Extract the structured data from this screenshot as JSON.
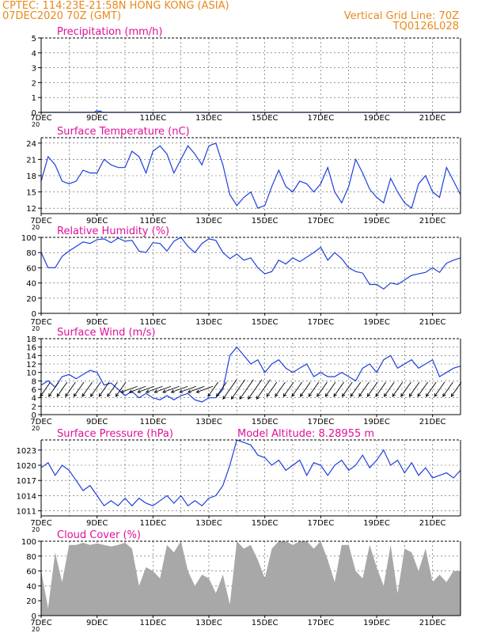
{
  "header": {
    "left_line1": "CPTEC:   114:23E-21:58N   HONG KONG (ASIA)",
    "left_line2": "07DEC2020 70Z (GMT)",
    "right_line1": "Vertical Grid Line: 70Z",
    "right_line2": "TQ0126L028"
  },
  "x_tick_labels": [
    "7DEC",
    "9DEC",
    "11DEC",
    "13DEC",
    "15DEC",
    "17DEC",
    "19DEC",
    "21DEC"
  ],
  "x_stub": "20",
  "colors": {
    "header": "#e8891b",
    "title": "#e0109a",
    "line": "#1f3fdc",
    "cloud_fill": "#a8a8a8"
  },
  "chart_data": [
    {
      "type": "line",
      "title": "Precipitation (mm/h)",
      "x_days": [
        7,
        7.5,
        8,
        8.5,
        8.9,
        9,
        9.05,
        9.1,
        9.2,
        9.5,
        10,
        11,
        12,
        13,
        14,
        15,
        16,
        17,
        18,
        19,
        20,
        21,
        22
      ],
      "values": [
        0,
        0,
        0,
        0,
        0,
        0.12,
        0.05,
        0.1,
        0,
        0,
        0,
        0,
        0,
        0,
        0,
        0,
        0,
        0,
        0,
        0,
        0,
        0,
        0
      ],
      "ylim": [
        0,
        5
      ],
      "yticks": [
        0,
        1,
        2,
        3,
        4,
        5
      ]
    },
    {
      "type": "line",
      "title": "Surface Temperature (nC)",
      "x_days": [
        7,
        7.25,
        7.5,
        7.75,
        8,
        8.25,
        8.5,
        8.75,
        9,
        9.25,
        9.5,
        9.75,
        10,
        10.25,
        10.5,
        10.75,
        11,
        11.25,
        11.5,
        11.75,
        12,
        12.25,
        12.5,
        12.75,
        13,
        13.25,
        13.5,
        13.75,
        14,
        14.25,
        14.5,
        14.75,
        15,
        15.25,
        15.5,
        15.75,
        16,
        16.25,
        16.5,
        16.75,
        17,
        17.25,
        17.5,
        17.75,
        18,
        18.25,
        18.5,
        18.75,
        19,
        19.25,
        19.5,
        19.75,
        20,
        20.25,
        20.5,
        20.75,
        21,
        21.25,
        21.5,
        21.75,
        22
      ],
      "values": [
        17,
        21.5,
        20,
        17,
        16.5,
        17,
        19,
        18.5,
        18.5,
        21,
        20,
        19.5,
        19.5,
        22.5,
        21.5,
        18.5,
        22.5,
        23.5,
        22,
        18.5,
        21,
        23.5,
        22,
        20,
        23.5,
        24,
        20,
        14.5,
        12.5,
        14,
        15,
        12,
        12.5,
        16,
        19,
        16,
        15,
        17,
        16.5,
        15,
        16.5,
        19.5,
        15,
        13,
        16,
        21,
        18.5,
        15.5,
        14,
        13,
        17.5,
        15,
        13,
        12,
        16.5,
        18,
        15,
        14,
        19.5,
        17,
        14.5
      ],
      "ylim": [
        11,
        25
      ],
      "yticks": [
        12,
        15,
        18,
        21,
        24
      ]
    },
    {
      "type": "line",
      "title": "Relative Humidity (%)",
      "x_days": [
        7,
        7.25,
        7.5,
        7.75,
        8,
        8.25,
        8.5,
        8.75,
        9,
        9.25,
        9.5,
        9.75,
        10,
        10.25,
        10.5,
        10.75,
        11,
        11.25,
        11.5,
        11.75,
        12,
        12.25,
        12.5,
        12.75,
        13,
        13.25,
        13.5,
        13.75,
        14,
        14.25,
        14.5,
        14.75,
        15,
        15.25,
        15.5,
        15.75,
        16,
        16.25,
        16.5,
        16.75,
        17,
        17.25,
        17.5,
        17.75,
        18,
        18.25,
        18.5,
        18.75,
        19,
        19.25,
        19.5,
        19.75,
        20,
        20.25,
        20.5,
        20.75,
        21,
        21.25,
        21.5,
        21.75,
        22
      ],
      "values": [
        80,
        60,
        60,
        75,
        82,
        88,
        94,
        92,
        97,
        98,
        93,
        99,
        95,
        96,
        82,
        80,
        93,
        92,
        82,
        95,
        100,
        88,
        80,
        92,
        98,
        96,
        80,
        72,
        78,
        70,
        73,
        60,
        52,
        55,
        70,
        65,
        73,
        68,
        74,
        80,
        87,
        70,
        80,
        72,
        60,
        55,
        53,
        38,
        38,
        32,
        40,
        38,
        44,
        50,
        52,
        54,
        60,
        54,
        66,
        70,
        73
      ],
      "ylim": [
        0,
        100
      ],
      "yticks": [
        0,
        20,
        40,
        60,
        80,
        100
      ]
    },
    {
      "type": "line",
      "title": "Surface Wind (m/s)",
      "x_days": [
        7,
        7.25,
        7.5,
        7.75,
        8,
        8.25,
        8.5,
        8.75,
        9,
        9.25,
        9.5,
        9.75,
        10,
        10.25,
        10.5,
        10.75,
        11,
        11.25,
        11.5,
        11.75,
        12,
        12.25,
        12.5,
        12.75,
        13,
        13.25,
        13.5,
        13.75,
        14,
        14.25,
        14.5,
        14.75,
        15,
        15.25,
        15.5,
        15.75,
        16,
        16.25,
        16.5,
        16.75,
        17,
        17.25,
        17.5,
        17.75,
        18,
        18.25,
        18.5,
        18.75,
        19,
        19.25,
        19.5,
        19.75,
        20,
        20.25,
        20.5,
        20.75,
        21,
        21.25,
        21.5,
        21.75,
        22
      ],
      "values": [
        7,
        8,
        6.5,
        9,
        9.5,
        8.5,
        9.5,
        10.5,
        10,
        7,
        7.5,
        6,
        4.5,
        5.5,
        4,
        5,
        4,
        3.5,
        4.5,
        3.5,
        4.5,
        5,
        3.5,
        3,
        4,
        4,
        6,
        14,
        16,
        14,
        12,
        13,
        10,
        12,
        13,
        11,
        10,
        11,
        12,
        9,
        10,
        9,
        9,
        10,
        9,
        8,
        11,
        12,
        10,
        13,
        14,
        11,
        12,
        13,
        11,
        12,
        13,
        9,
        10,
        11,
        11.5
      ],
      "ylim": [
        0,
        18
      ],
      "yticks": [
        0,
        2,
        4,
        6,
        8,
        10,
        12,
        14,
        16,
        18
      ]
    },
    {
      "type": "line",
      "title": "Surface Pressure (hPa)",
      "annotation": "Model Altitude: 8.28955  m",
      "x_days": [
        7,
        7.25,
        7.5,
        7.75,
        8,
        8.25,
        8.5,
        8.75,
        9,
        9.25,
        9.5,
        9.75,
        10,
        10.25,
        10.5,
        10.75,
        11,
        11.25,
        11.5,
        11.75,
        12,
        12.25,
        12.5,
        12.75,
        13,
        13.25,
        13.5,
        13.75,
        14,
        14.25,
        14.5,
        14.75,
        15,
        15.25,
        15.5,
        15.75,
        16,
        16.25,
        16.5,
        16.75,
        17,
        17.25,
        17.5,
        17.75,
        18,
        18.25,
        18.5,
        18.75,
        19,
        19.25,
        19.5,
        19.75,
        20,
        20.25,
        20.5,
        20.75,
        21,
        21.25,
        21.5,
        21.75,
        22
      ],
      "values": [
        1019.5,
        1020.5,
        1018,
        1020,
        1019,
        1017,
        1015,
        1016,
        1014,
        1012,
        1013,
        1012,
        1013.5,
        1012,
        1013.5,
        1012.5,
        1012,
        1013,
        1014,
        1012.5,
        1014,
        1012,
        1013,
        1012,
        1013.5,
        1014,
        1016,
        1020,
        1025,
        1024.5,
        1024,
        1022,
        1021.5,
        1020,
        1021,
        1019,
        1020,
        1021,
        1018,
        1020.5,
        1020,
        1018,
        1020,
        1021,
        1019,
        1020,
        1022,
        1019.5,
        1021,
        1023,
        1020,
        1021,
        1018.5,
        1020.5,
        1018,
        1019.5,
        1017.5,
        1018,
        1018.5,
        1017.5,
        1019
      ],
      "ylim": [
        1010,
        1025
      ],
      "yticks": [
        1011,
        1014,
        1017,
        1020,
        1023
      ]
    },
    {
      "type": "area",
      "title": "Cloud Cover (%)",
      "x_days": [
        7,
        7.25,
        7.5,
        7.75,
        8,
        8.25,
        8.5,
        8.75,
        9,
        9.25,
        9.5,
        9.75,
        10,
        10.25,
        10.5,
        10.75,
        11,
        11.25,
        11.5,
        11.75,
        12,
        12.25,
        12.5,
        12.75,
        13,
        13.25,
        13.5,
        13.75,
        14,
        14.25,
        14.5,
        14.75,
        15,
        15.25,
        15.5,
        15.75,
        16,
        16.25,
        16.5,
        16.75,
        17,
        17.25,
        17.5,
        17.75,
        18,
        18.25,
        18.5,
        18.75,
        19,
        19.25,
        19.5,
        19.75,
        20,
        20.25,
        20.5,
        20.75,
        21,
        21.25,
        21.5,
        21.75,
        22
      ],
      "values": [
        60,
        10,
        85,
        45,
        95,
        95,
        98,
        95,
        97,
        95,
        93,
        95,
        98,
        90,
        40,
        65,
        60,
        50,
        95,
        85,
        100,
        60,
        40,
        55,
        50,
        30,
        55,
        15,
        100,
        90,
        95,
        75,
        50,
        90,
        100,
        100,
        95,
        100,
        100,
        90,
        100,
        75,
        45,
        95,
        95,
        60,
        50,
        95,
        65,
        40,
        95,
        30,
        90,
        85,
        60,
        90,
        45,
        55,
        45,
        60,
        60
      ],
      "ylim": [
        0,
        100
      ],
      "yticks": [
        0,
        20,
        40,
        60,
        80,
        100
      ]
    }
  ]
}
